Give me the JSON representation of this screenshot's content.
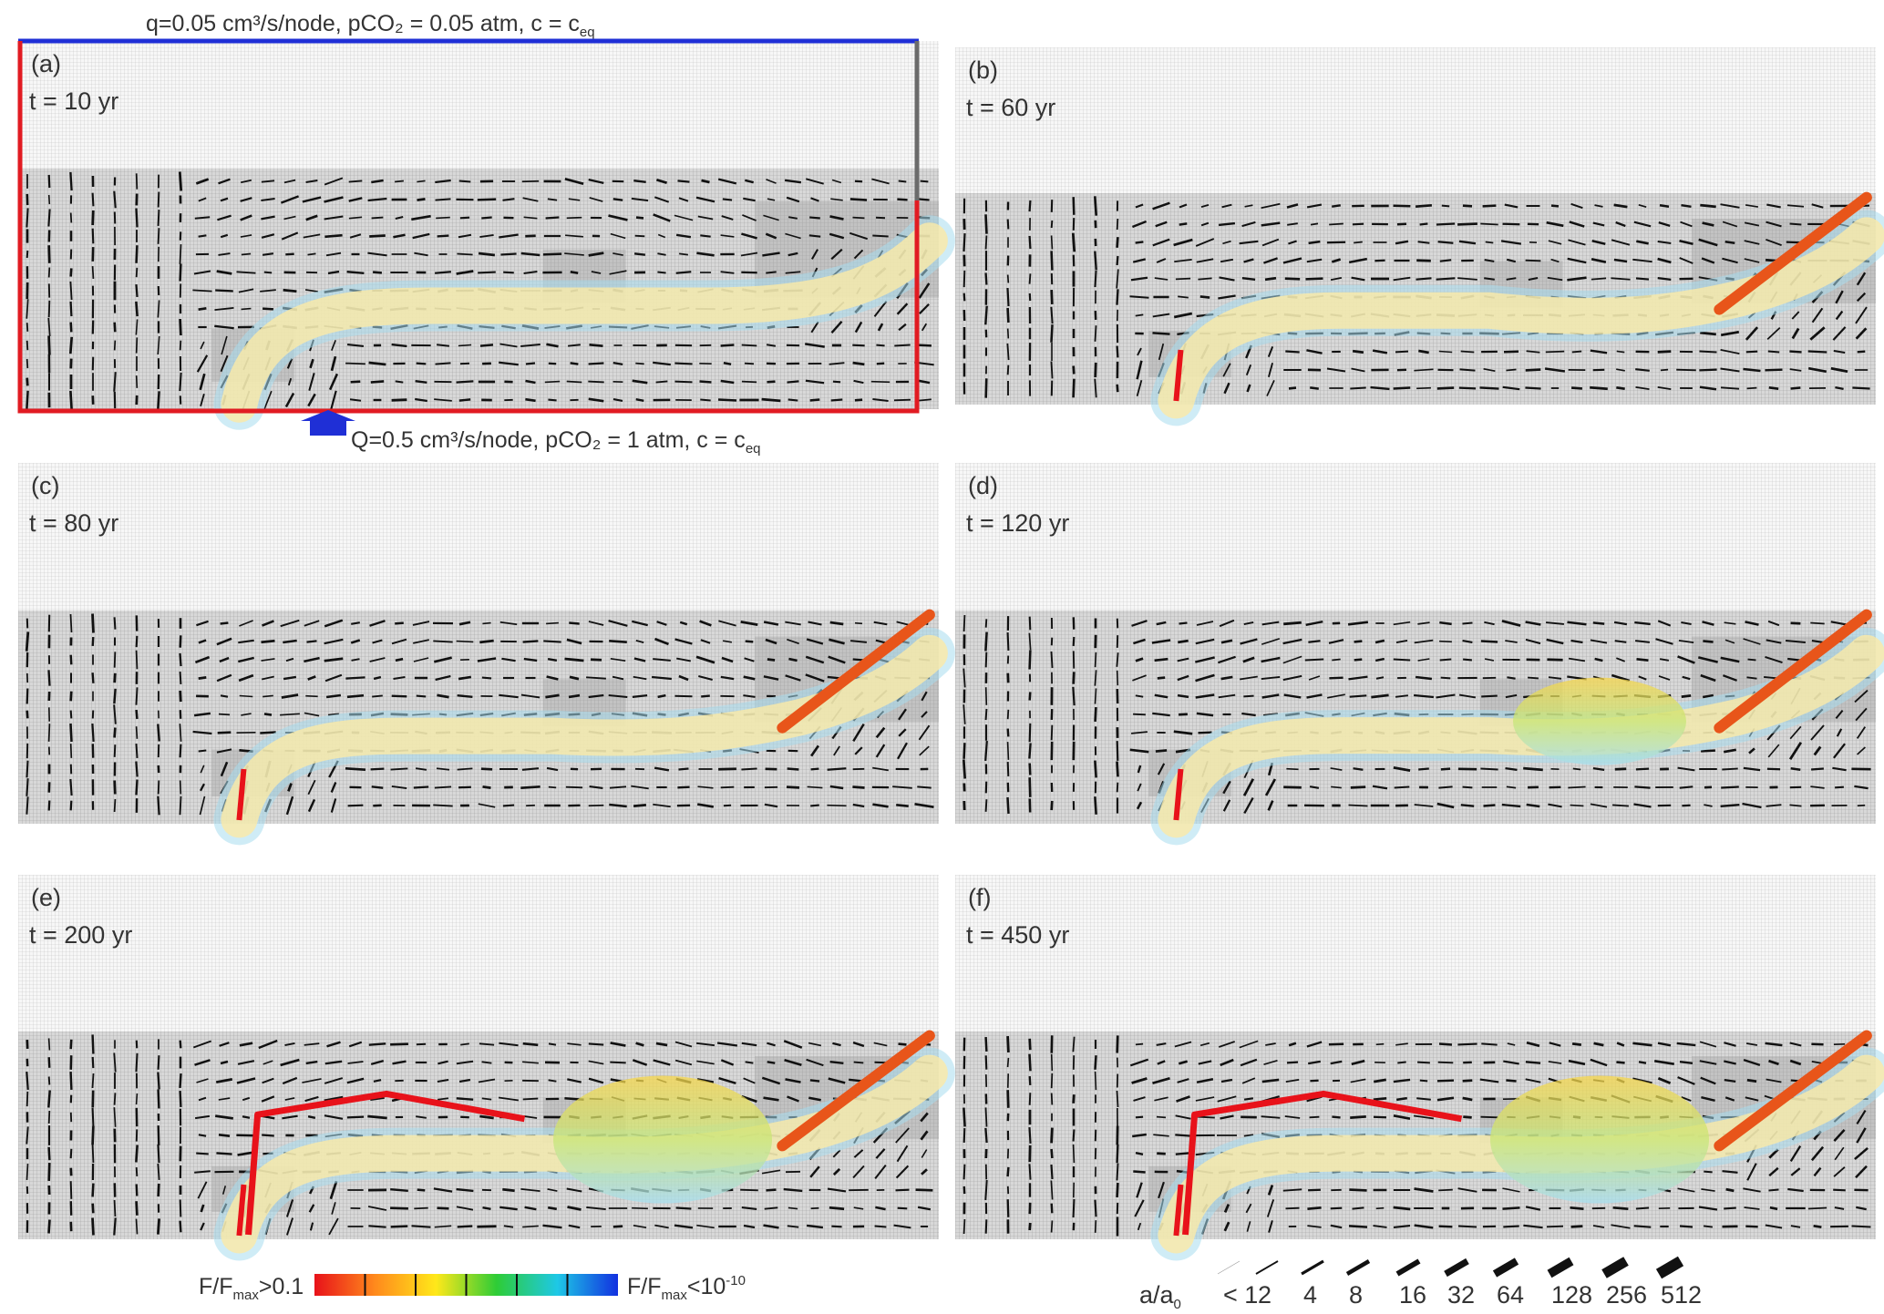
{
  "boundary": {
    "top_text": "q=0.05 cm³/s/node, pCO₂ = 0.05 atm, c = c",
    "top_sub": "eq",
    "bottom_text": "Q=0.5 cm³/s/node, pCO₂ = 1 atm, c = c",
    "bottom_sub": "eq",
    "top_color": "#1f2fd6",
    "side_color": "#e11b22",
    "right_color": "#6b6b6b",
    "inflow_arrow_color": "#1f2fd6"
  },
  "panels": [
    {
      "label": "(a)",
      "time": "t = 10 yr"
    },
    {
      "label": "(b)",
      "time": "t = 60 yr"
    },
    {
      "label": "(c)",
      "time": "t = 80 yr"
    },
    {
      "label": "(d)",
      "time": "t = 120 yr"
    },
    {
      "label": "(e)",
      "time": "t = 200 yr"
    },
    {
      "label": "(f)",
      "time": "t = 450 yr"
    }
  ],
  "colorbar": {
    "left_label": "F/F",
    "left_sub": "max",
    "left_suffix": ">0.1",
    "right_label": "F/F",
    "right_sub": "max",
    "right_suffix": "<10",
    "right_sup": "-10",
    "colors": [
      "#e8121a",
      "#ff8a1c",
      "#ffe81a",
      "#2ecc36",
      "#1ec8e6",
      "#1230e0"
    ]
  },
  "aperture_legend": {
    "prefix": "a/a",
    "prefix_sub": "0",
    "values": [
      "< 1",
      "2",
      "4",
      "8",
      "16",
      "32",
      "64",
      "128",
      "256",
      "512"
    ]
  }
}
